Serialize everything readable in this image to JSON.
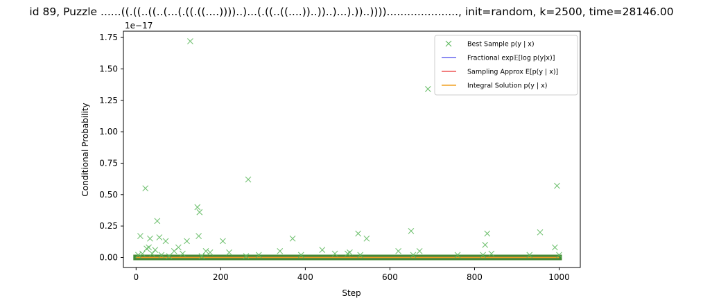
{
  "chart_data": {
    "type": "scatter",
    "title": "id 89, Puzzle ......((.((..((..(...(.((.((....))))..)...(.((..((....))..))..)...).))..)))).....................,  init=random, k=2500, time=28146.00",
    "xlabel": "Step",
    "ylabel": "Conditional Probability",
    "offset_label": "1e−17",
    "xlim": [
      -30,
      1050
    ],
    "ylim": [
      -0.08,
      1.8
    ],
    "y_scale_note": "values in units of 1e-17",
    "xticks": [
      0,
      200,
      400,
      600,
      800,
      1000
    ],
    "xtick_labels": [
      "0",
      "200",
      "400",
      "600",
      "800",
      "1000"
    ],
    "yticks": [
      0.0,
      0.25,
      0.5,
      0.75,
      1.0,
      1.25,
      1.5,
      1.75
    ],
    "ytick_labels": [
      "0.00",
      "0.25",
      "0.50",
      "0.75",
      "1.00",
      "1.25",
      "1.50",
      "1.75"
    ],
    "grid": false,
    "legend_position": "top-right",
    "legend": [
      {
        "label": "Best Sample p(y | x)",
        "marker": "x",
        "color": "#5cb85c"
      },
      {
        "label": "Fractional exp𝔼[log p(y|x)]",
        "marker": "line",
        "color": "#6666ee"
      },
      {
        "label": "Sampling Approx E[p(y | x)]",
        "marker": "line",
        "color": "#ee5555"
      },
      {
        "label": "Integral Solution p(y | x)",
        "marker": "line",
        "color": "#f0a020"
      }
    ],
    "colors": {
      "best_sample": "#5cb85c",
      "fractional": "#6666ee",
      "sampling": "#ee5555",
      "integral": "#f0a020",
      "baseline_band": "#2e7d1e"
    },
    "series": [
      {
        "name": "Best Sample p(y | x)",
        "marker": "x",
        "x": [
          5,
          10,
          15,
          22,
          25,
          30,
          33,
          38,
          45,
          50,
          55,
          60,
          70,
          78,
          90,
          100,
          110,
          120,
          128,
          145,
          148,
          150,
          155,
          165,
          175,
          205,
          220,
          260,
          265,
          290,
          340,
          370,
          390,
          440,
          470,
          500,
          505,
          525,
          530,
          545,
          620,
          650,
          655,
          670,
          690,
          760,
          820,
          825,
          830,
          840,
          930,
          955,
          990,
          995,
          1000
        ],
        "y": [
          0.02,
          0.17,
          0.03,
          0.55,
          0.07,
          0.08,
          0.15,
          0.03,
          0.06,
          0.29,
          0.16,
          0.02,
          0.13,
          0.01,
          0.05,
          0.08,
          0.03,
          0.13,
          1.72,
          0.4,
          0.17,
          0.36,
          0.01,
          0.05,
          0.04,
          0.13,
          0.04,
          0.01,
          0.62,
          0.02,
          0.05,
          0.15,
          0.02,
          0.06,
          0.03,
          0.03,
          0.04,
          0.19,
          0.02,
          0.15,
          0.05,
          0.21,
          0.02,
          0.05,
          1.34,
          0.02,
          0.02,
          0.1,
          0.19,
          0.03,
          0.02,
          0.2,
          0.08,
          0.57,
          0.02
        ]
      },
      {
        "name": "Fractional exp𝔼[log p(y|x)]",
        "x": [
          0,
          1000
        ],
        "y": [
          0.0,
          0.0
        ]
      },
      {
        "name": "Sampling Approx E[p(y | x)]",
        "x": [
          0,
          1000
        ],
        "y": [
          0.0,
          0.0
        ]
      },
      {
        "name": "Integral Solution p(y | x)",
        "x": [
          0,
          1000
        ],
        "y": [
          0.0,
          0.0
        ]
      }
    ]
  }
}
